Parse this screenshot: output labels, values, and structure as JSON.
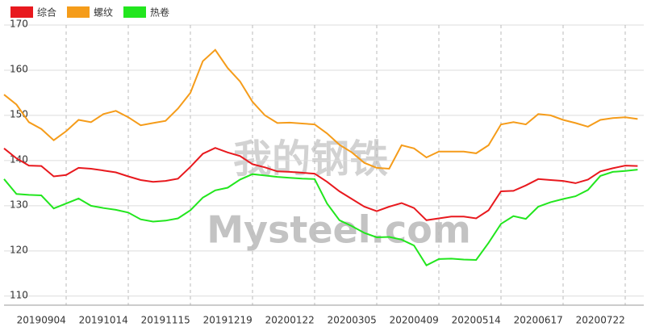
{
  "chart_data": {
    "type": "line",
    "watermark": {
      "cn": "我的钢铁",
      "en": "Mysteel.com"
    },
    "categories": [
      null,
      null,
      null,
      "20190904",
      null,
      null,
      null,
      null,
      "20191014",
      null,
      null,
      null,
      null,
      "20191115",
      null,
      null,
      null,
      null,
      "20191219",
      null,
      null,
      null,
      null,
      "20200122",
      null,
      null,
      null,
      null,
      "20200305",
      null,
      null,
      null,
      null,
      "20200409",
      null,
      null,
      null,
      null,
      "20200514",
      null,
      null,
      null,
      null,
      "20200617",
      null,
      null,
      null,
      null,
      "20200722",
      null,
      null,
      null
    ],
    "series": [
      {
        "name": "综合",
        "color": "#e8191e",
        "values": [
          142.7,
          140.5,
          138.9,
          138.8,
          136.5,
          136.8,
          138.4,
          138.2,
          137.8,
          137.4,
          136.5,
          135.7,
          135.3,
          135.5,
          136,
          138.6,
          141.5,
          142.8,
          141.8,
          141,
          139.2,
          138.5,
          137.6,
          137.5,
          137.3,
          137.1,
          135.3,
          133.2,
          131.5,
          129.8,
          128.8,
          129.8,
          130.6,
          129.5,
          126.8,
          127.2,
          127.6,
          127.6,
          127.2,
          129,
          133.2,
          133.3,
          134.5,
          135.9,
          135.7,
          135.5,
          135,
          135.8,
          137.6,
          138.3,
          138.9,
          138.8
        ]
      },
      {
        "name": "螺纹",
        "color": "#f59c1a",
        "values": [
          154.6,
          152.4,
          148.5,
          147,
          144.5,
          146.5,
          149,
          148.5,
          150.3,
          151,
          149.6,
          147.8,
          148.3,
          148.8,
          151.5,
          155,
          162,
          164.5,
          160.5,
          157.5,
          153,
          150,
          148.3,
          148.4,
          148.2,
          148,
          146,
          143.5,
          141.8,
          139.5,
          138.4,
          138.2,
          143.4,
          142.7,
          140.7,
          142,
          142,
          142,
          141.6,
          143.4,
          148,
          148.5,
          148,
          150.3,
          150,
          149,
          148.3,
          147.5,
          149,
          149.4,
          149.6,
          149.2
        ]
      },
      {
        "name": "热卷",
        "color": "#22e61e",
        "values": [
          135.9,
          132.6,
          132.4,
          132.3,
          129.4,
          130.5,
          131.6,
          130,
          129.5,
          129.1,
          128.5,
          127,
          126.5,
          126.7,
          127.2,
          129,
          131.8,
          133.4,
          134,
          135.8,
          137,
          136.7,
          136.4,
          136.2,
          136,
          135.9,
          130.5,
          126.8,
          125.5,
          124,
          123,
          123.1,
          122.5,
          121.2,
          116.8,
          118.2,
          118.3,
          118.1,
          118,
          121.8,
          126,
          127.7,
          127.1,
          129.8,
          130.8,
          131.5,
          132.1,
          133.5,
          136.6,
          137.5,
          137.7,
          138
        ]
      }
    ],
    "ylim": [
      108,
      170
    ],
    "yticks": [
      110,
      120,
      130,
      140,
      150,
      160,
      170
    ],
    "grid": true,
    "legend": "top-left"
  }
}
